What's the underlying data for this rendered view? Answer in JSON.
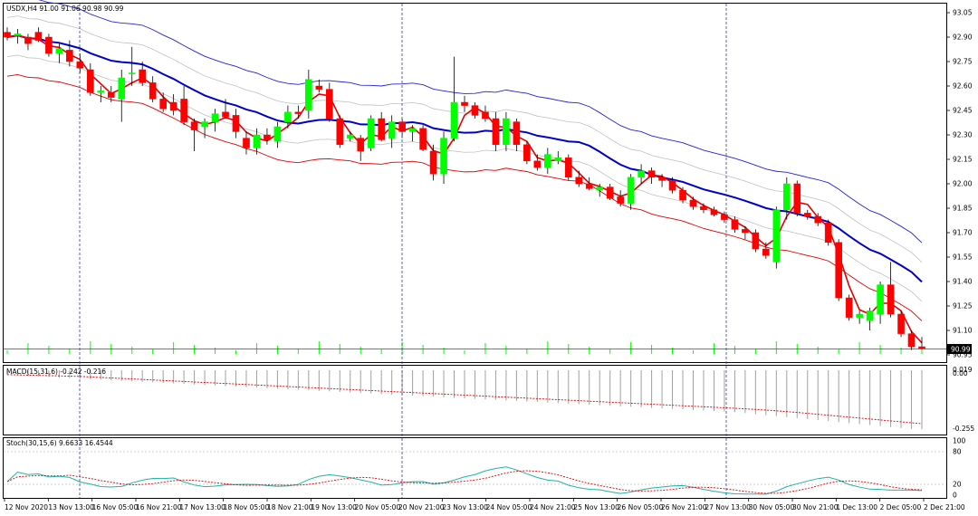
{
  "window": {
    "main_title": "USDX,H4  91.00 91.06 90.98 90.99",
    "current_price": "90.99",
    "macd_title": "MACD(15,31,6) -0.242 -0.216",
    "stoch_title": "Stoch(30,15,6) 9.6633 16.4544"
  },
  "colors": {
    "bull": "#00ff00",
    "bear": "#ff0000",
    "ma_fast": "#e00000",
    "ma_slow": "#0000c8",
    "envelope_outer": "#2222dd",
    "envelope_inner": "#c0c0c0",
    "macd_signal": "#dd0000",
    "stoch_main": "#20b2aa",
    "stoch_signal": "#dd0000"
  },
  "chart_data": [
    {
      "type": "candlestick",
      "name": "USDX,H4",
      "ylim": [
        90.9,
        93.1
      ],
      "y_ticks": [
        90.95,
        91.1,
        91.25,
        91.4,
        91.55,
        91.7,
        91.85,
        92.0,
        92.15,
        92.3,
        92.45,
        92.6,
        92.75,
        92.9,
        93.05
      ],
      "current_price": 90.99,
      "ohlc": [
        [
          92.93,
          92.96,
          92.88,
          92.9
        ],
        [
          92.91,
          92.95,
          92.86,
          92.92
        ],
        [
          92.9,
          92.92,
          92.82,
          92.86
        ],
        [
          92.93,
          92.96,
          92.87,
          92.88
        ],
        [
          92.9,
          92.92,
          92.78,
          92.8
        ],
        [
          92.8,
          92.86,
          92.74,
          92.83
        ],
        [
          92.82,
          92.88,
          92.72,
          92.75
        ],
        [
          92.75,
          92.8,
          92.68,
          92.71
        ],
        [
          92.7,
          92.74,
          92.54,
          92.56
        ],
        [
          92.56,
          92.6,
          92.5,
          92.57
        ],
        [
          92.56,
          92.6,
          92.5,
          92.53
        ],
        [
          92.52,
          92.7,
          92.38,
          92.65
        ],
        [
          92.68,
          92.84,
          92.6,
          92.68
        ],
        [
          92.7,
          92.75,
          92.6,
          92.62
        ],
        [
          92.62,
          92.66,
          92.5,
          92.52
        ],
        [
          92.52,
          92.56,
          92.44,
          92.46
        ],
        [
          92.5,
          92.55,
          92.42,
          92.45
        ],
        [
          92.52,
          92.6,
          92.36,
          92.38
        ],
        [
          92.38,
          92.4,
          92.2,
          92.33
        ],
        [
          92.35,
          92.4,
          92.28,
          92.38
        ],
        [
          92.38,
          92.46,
          92.32,
          92.43
        ],
        [
          92.44,
          92.52,
          92.4,
          92.41
        ],
        [
          92.42,
          92.46,
          92.28,
          92.32
        ],
        [
          92.28,
          92.32,
          92.18,
          92.22
        ],
        [
          92.22,
          92.34,
          92.18,
          92.3
        ],
        [
          92.3,
          92.34,
          92.24,
          92.27
        ],
        [
          92.26,
          92.38,
          92.22,
          92.35
        ],
        [
          92.38,
          92.48,
          92.34,
          92.44
        ],
        [
          92.44,
          92.48,
          92.4,
          92.43
        ],
        [
          92.45,
          92.7,
          92.4,
          92.64
        ],
        [
          92.6,
          92.64,
          92.56,
          92.58
        ],
        [
          92.58,
          92.62,
          92.38,
          92.4
        ],
        [
          92.4,
          92.42,
          92.22,
          92.24
        ],
        [
          92.28,
          92.32,
          92.26,
          92.3
        ],
        [
          92.28,
          92.3,
          92.14,
          92.2
        ],
        [
          92.22,
          92.42,
          92.2,
          92.4
        ],
        [
          92.4,
          92.44,
          92.26,
          92.27
        ],
        [
          92.28,
          92.42,
          92.22,
          92.38
        ],
        [
          92.38,
          92.4,
          92.28,
          92.32
        ],
        [
          92.32,
          92.36,
          92.26,
          92.34
        ],
        [
          92.34,
          92.36,
          92.2,
          92.21
        ],
        [
          92.2,
          92.24,
          92.02,
          92.06
        ],
        [
          92.06,
          92.32,
          92.0,
          92.28
        ],
        [
          92.28,
          92.78,
          92.26,
          92.5
        ],
        [
          92.5,
          92.54,
          92.44,
          92.48
        ],
        [
          92.48,
          92.5,
          92.4,
          92.42
        ],
        [
          92.44,
          92.48,
          92.38,
          92.4
        ],
        [
          92.4,
          92.44,
          92.2,
          92.24
        ],
        [
          92.24,
          92.44,
          92.2,
          92.4
        ],
        [
          92.38,
          92.4,
          92.2,
          92.24
        ],
        [
          92.24,
          92.26,
          92.12,
          92.14
        ],
        [
          92.14,
          92.18,
          92.08,
          92.1
        ],
        [
          92.1,
          92.22,
          92.06,
          92.18
        ],
        [
          92.14,
          92.2,
          92.12,
          92.16
        ],
        [
          92.16,
          92.18,
          92.02,
          92.04
        ],
        [
          92.04,
          92.08,
          91.98,
          92.0
        ],
        [
          92.0,
          92.04,
          91.96,
          91.97
        ],
        [
          91.96,
          92.0,
          91.92,
          91.98
        ],
        [
          91.98,
          92.0,
          91.9,
          91.91
        ],
        [
          91.92,
          91.96,
          91.86,
          91.88
        ],
        [
          91.88,
          92.06,
          91.84,
          92.04
        ],
        [
          92.04,
          92.12,
          92.0,
          92.08
        ],
        [
          92.08,
          92.1,
          92.0,
          92.04
        ],
        [
          92.04,
          92.06,
          91.98,
          92.02
        ],
        [
          92.02,
          92.04,
          91.94,
          91.96
        ],
        [
          91.96,
          91.98,
          91.88,
          91.9
        ],
        [
          91.9,
          91.92,
          91.84,
          91.86
        ],
        [
          91.86,
          91.88,
          91.82,
          91.84
        ],
        [
          91.84,
          91.86,
          91.8,
          91.81
        ],
        [
          91.81,
          91.83,
          91.76,
          91.78
        ],
        [
          91.78,
          91.8,
          91.7,
          91.72
        ],
        [
          91.72,
          91.74,
          91.66,
          91.7
        ],
        [
          91.7,
          91.72,
          91.58,
          91.6
        ],
        [
          91.6,
          91.64,
          91.54,
          91.56
        ],
        [
          91.52,
          91.86,
          91.48,
          91.84
        ],
        [
          91.84,
          92.04,
          91.78,
          92.0
        ],
        [
          92.0,
          92.02,
          91.8,
          91.82
        ],
        [
          91.82,
          91.84,
          91.78,
          91.8
        ],
        [
          91.8,
          91.82,
          91.74,
          91.76
        ],
        [
          91.76,
          91.78,
          91.62,
          91.64
        ],
        [
          91.64,
          91.66,
          91.28,
          91.3
        ],
        [
          91.3,
          91.32,
          91.16,
          91.18
        ],
        [
          91.18,
          91.22,
          91.14,
          91.2
        ],
        [
          91.16,
          91.24,
          91.1,
          91.22
        ],
        [
          91.2,
          91.4,
          91.14,
          91.38
        ],
        [
          91.38,
          91.52,
          91.18,
          91.2
        ],
        [
          91.2,
          91.22,
          91.06,
          91.08
        ],
        [
          91.08,
          91.1,
          90.98,
          91.0
        ],
        [
          91.0,
          91.06,
          90.98,
          90.99
        ]
      ]
    },
    {
      "type": "bar",
      "name": "MACD(15,31,6)",
      "values_shown": [
        -0.242,
        -0.216
      ],
      "y_ticks": [
        "0.019",
        "0.00",
        "-0.255"
      ]
    },
    {
      "type": "line",
      "name": "Stoch(30,15,6)",
      "values_shown": [
        9.6633,
        16.4544
      ],
      "ylim": [
        0,
        100
      ],
      "y_ticks": [
        "100",
        "80",
        "20",
        "0"
      ]
    }
  ],
  "x_axis": {
    "labels": [
      "12 Nov 2020",
      "13 Nov 13:00",
      "16 Nov 05:00",
      "16 Nov 21:00",
      "17 Nov 13:00",
      "18 Nov 05:00",
      "18 Nov 21:00",
      "19 Nov 13:00",
      "20 Nov 05:00",
      "20 Nov 21:00",
      "23 Nov 13:00",
      "24 Nov 05:00",
      "24 Nov 21:00",
      "25 Nov 13:00",
      "26 Nov 05:00",
      "26 Nov 21:00",
      "27 Nov 13:00",
      "30 Nov 05:00",
      "30 Nov 21:00",
      "1 Dec 13:00",
      "2 Dec 05:00",
      "2 Dec 21:00"
    ]
  }
}
